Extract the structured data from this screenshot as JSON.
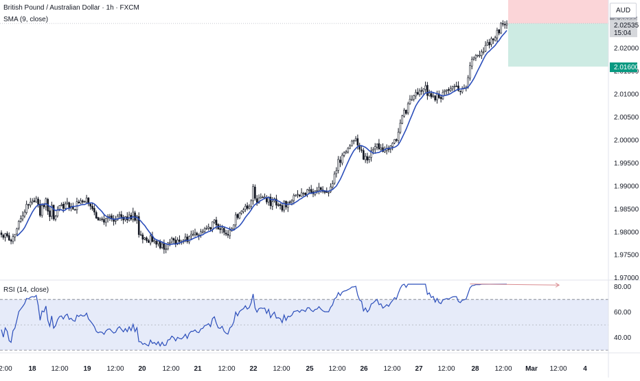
{
  "header": {
    "title": "British Pound / Australian Dollar · 1h · FXCM",
    "indicator": "SMA (9, close)",
    "rsi_label": "RSI (14, close)",
    "currency": "AUD"
  },
  "colors": {
    "up": "#131722",
    "down": "#131722",
    "sma": "#2a4dba",
    "rsi": "#2a4dba",
    "rsi_band": "#e6ebf9",
    "stop_zone": "#fbd5d8",
    "target_zone": "#cdebe3",
    "target_label": "#089981",
    "last_label": "#d5d7db",
    "divergence": "#d98a8f"
  },
  "price_axis": {
    "ticks": [
      "2.02000",
      "2.01500",
      "2.01000",
      "2.00500",
      "2.00000",
      "1.99500",
      "1.99000",
      "1.98500",
      "1.98000",
      "1.97500",
      "1.97000"
    ],
    "stop_label": "2.02600",
    "last_price": "2.02535",
    "countdown": "15:04",
    "target_label": "2.01600"
  },
  "rsi_axis": {
    "ticks": [
      "80.00",
      "60.00",
      "40.00"
    ]
  },
  "time_axis": {
    "labels": [
      "2:00",
      "18",
      "12:00",
      "19",
      "12:00",
      "20",
      "12:00",
      "21",
      "12:00",
      "22",
      "12:00",
      "25",
      "12:00",
      "26",
      "12:00",
      "27",
      "12:00",
      "28",
      "12:00",
      "Mar",
      "12:00",
      "4"
    ],
    "bold": [
      "18",
      "19",
      "20",
      "21",
      "22",
      "25",
      "26",
      "27",
      "28",
      "Mar",
      "4"
    ]
  },
  "chart_data": [
    {
      "type": "candlestick",
      "title": "British Pound / Australian Dollar · 1h · FXCM",
      "ylim": [
        1.9695,
        2.0305
      ],
      "x_start": "17 Feb 02:00",
      "x_interval": "1h",
      "position": {
        "entry": 2.0254,
        "stop": 2.0305,
        "target": 2.016
      },
      "close": [
        1.9794,
        1.9788,
        1.9796,
        1.9791,
        1.9782,
        1.978,
        1.979,
        1.9794,
        1.9807,
        1.9823,
        1.9829,
        1.9835,
        1.9843,
        1.986,
        1.9859,
        1.9865,
        1.9867,
        1.9866,
        1.9873,
        1.986,
        1.9836,
        1.9857,
        1.9855,
        1.9872,
        1.9845,
        1.9833,
        1.9858,
        1.9828,
        1.9834,
        1.9848,
        1.9857,
        1.9859,
        1.9851,
        1.9861,
        1.9865,
        1.9853,
        1.9856,
        1.985,
        1.9848,
        1.9866,
        1.9863,
        1.9868,
        1.9865,
        1.9866,
        1.9874,
        1.9861,
        1.9856,
        1.985,
        1.9843,
        1.983,
        1.9826,
        1.9828,
        1.9827,
        1.9821,
        1.9829,
        1.9833,
        1.9834,
        1.9828,
        1.9823,
        1.9825,
        1.9834,
        1.9838,
        1.9832,
        1.9826,
        1.9833,
        1.9826,
        1.9837,
        1.9828,
        1.9843,
        1.9825,
        1.9834,
        1.9794,
        1.9794,
        1.9784,
        1.9787,
        1.9781,
        1.9777,
        1.9791,
        1.9779,
        1.9781,
        1.9773,
        1.978,
        1.9765,
        1.9774,
        1.9762,
        1.9763,
        1.9776,
        1.9777,
        1.9786,
        1.9782,
        1.9774,
        1.9782,
        1.9779,
        1.9778,
        1.9782,
        1.9789,
        1.9779,
        1.979,
        1.9795,
        1.9795,
        1.9798,
        1.9793,
        1.9792,
        1.98,
        1.9801,
        1.9807,
        1.9808,
        1.9811,
        1.9806,
        1.9822,
        1.9826,
        1.9815,
        1.9806,
        1.9805,
        1.9809,
        1.9799,
        1.9795,
        1.9793,
        1.9804,
        1.9807,
        1.9815,
        1.9837,
        1.9831,
        1.9841,
        1.9845,
        1.9848,
        1.9856,
        1.9851,
        1.9855,
        1.9868,
        1.9899,
        1.9873,
        1.9864,
        1.9874,
        1.9876,
        1.9875,
        1.9876,
        1.9865,
        1.9876,
        1.9857,
        1.9866,
        1.9872,
        1.9858,
        1.9859,
        1.9857,
        1.9847,
        1.9867,
        1.9854,
        1.9865,
        1.9864,
        1.9868,
        1.9879,
        1.988,
        1.9882,
        1.9878,
        1.9885,
        1.9884,
        1.9881,
        1.9892,
        1.9892,
        1.9886,
        1.9883,
        1.9889,
        1.989,
        1.9897,
        1.9892,
        1.9888,
        1.9886,
        1.9886,
        1.9886,
        1.9898,
        1.9905,
        1.9926,
        1.9933,
        1.9958,
        1.9951,
        1.9967,
        1.9973,
        1.9975,
        1.9982,
        1.9987,
        1.9998,
        1.9999,
        2.0003,
        1.9989,
        1.998,
        1.9978,
        1.9958,
        1.9965,
        1.9956,
        1.9962,
        1.9977,
        1.998,
        1.9986,
        1.9991,
        1.9981,
        1.9983,
        1.9975,
        1.9978,
        1.9982,
        1.9979,
        1.9987,
        1.9993,
        2.0001,
        1.9999,
        2.0017,
        2.0037,
        2.0053,
        2.0065,
        2.0058,
        2.0079,
        2.0089,
        2.0088,
        2.0097,
        2.0104,
        2.01,
        2.0107,
        2.0106,
        2.0111,
        2.0118,
        2.0097,
        2.0102,
        2.0094,
        2.0097,
        2.0087,
        2.01,
        2.0092,
        2.009,
        2.0104,
        2.0107,
        2.0109,
        2.0108,
        2.0112,
        2.0116,
        2.0117,
        2.0117,
        2.0108,
        2.0106,
        2.0112,
        2.0113,
        2.0115,
        2.0136,
        2.0162,
        2.0176,
        2.0179,
        2.0184,
        2.0185,
        2.0185,
        2.0192,
        2.0192,
        2.0206,
        2.0212,
        2.0207,
        2.0221,
        2.0218,
        2.0223,
        2.0239,
        2.0233,
        2.0254,
        2.0253,
        2.0252,
        2.0254
      ],
      "sma_period": 9
    },
    {
      "type": "line",
      "title": "RSI (14, close)",
      "ylim": [
        29,
        82
      ],
      "band": [
        30,
        70
      ],
      "midline": 50,
      "divergence_line": [
        [
          242,
          82.2
        ],
        [
          288,
          81.3
        ]
      ],
      "values": [
        46.2,
        40.3,
        47.6,
        44.9,
        37.5,
        36.2,
        45.3,
        47.4,
        53.8,
        60.4,
        62.4,
        64.4,
        66.7,
        70.8,
        70.4,
        71.7,
        72.2,
        71.9,
        73.2,
        65.4,
        53.6,
        60.9,
        60.2,
        64.8,
        53.4,
        48.9,
        57.0,
        47.4,
        49.4,
        54.0,
        56.5,
        57.0,
        54.6,
        57.4,
        58.4,
        54.3,
        55.2,
        53.4,
        52.8,
        57.6,
        56.6,
        57.9,
        56.9,
        57.2,
        59.2,
        54.6,
        52.9,
        50.9,
        48.6,
        44.8,
        43.7,
        44.4,
        44.1,
        42.5,
        45.2,
        46.5,
        46.8,
        45.0,
        43.5,
        44.2,
        47.2,
        48.5,
        46.4,
        44.5,
        47.0,
        44.6,
        48.4,
        45.4,
        50.4,
        44.7,
        47.7,
        36.7,
        36.7,
        34.6,
        35.4,
        34.2,
        33.4,
        38.0,
        35.4,
        36.1,
        34.4,
        36.6,
        33.3,
        36.3,
        33.7,
        34.0,
        38.1,
        38.4,
        41.1,
        39.9,
        37.4,
        40.2,
        39.2,
        38.9,
        40.3,
        42.6,
        39.3,
        43.2,
        44.9,
        44.9,
        46.0,
        44.2,
        43.8,
        46.8,
        47.2,
        49.4,
        49.8,
        50.9,
        48.6,
        54.9,
        56.3,
        51.3,
        47.6,
        47.2,
        48.9,
        44.9,
        43.4,
        42.7,
        47.6,
        48.9,
        52.2,
        60.0,
        57.1,
        60.6,
        61.8,
        62.7,
        65.0,
        62.4,
        63.6,
        67.4,
        74.3,
        63.3,
        60.0,
        62.8,
        63.3,
        62.9,
        63.2,
        59.0,
        62.2,
        55.6,
        58.2,
        60.0,
        55.3,
        55.6,
        54.9,
        51.7,
        57.7,
        53.5,
        56.8,
        56.4,
        57.6,
        60.5,
        60.8,
        61.3,
        59.9,
        61.8,
        61.4,
        60.5,
        63.4,
        63.4,
        61.4,
        60.4,
        62.1,
        62.4,
        64.3,
        62.4,
        61.0,
        60.3,
        60.3,
        60.3,
        63.8,
        65.6,
        70.3,
        71.6,
        75.4,
        73.1,
        75.7,
        76.6,
        76.9,
        77.8,
        78.5,
        79.8,
        79.9,
        80.4,
        73.4,
        69.5,
        68.6,
        60.9,
        63.3,
        60.1,
        62.0,
        66.4,
        67.2,
        68.8,
        70.1,
        65.9,
        66.6,
        63.2,
        64.3,
        65.9,
        64.6,
        67.2,
        69.1,
        71.4,
        70.5,
        74.9,
        78.8,
        81.3,
        82.9,
        79.5,
        82.8,
        84.0,
        83.6,
        84.4,
        85.0,
        82.8,
        83.3,
        82.9,
        83.4,
        84.1,
        74.0,
        75.2,
        71.5,
        72.4,
        67.9,
        70.8,
        67.5,
        66.7,
        69.6,
        70.2,
        70.7,
        70.3,
        71.2,
        72.0,
        72.2,
        72.2,
        68.4,
        67.5,
        69.4,
        69.7,
        70.3,
        74.7,
        79.1,
        80.8,
        81.1,
        81.6,
        81.7,
        81.7,
        82.5,
        82.5,
        83.9,
        84.4,
        82.4,
        84.0,
        82.8,
        83.3,
        84.7,
        82.0,
        84.6,
        84.2,
        83.8,
        84.1
      ]
    }
  ]
}
